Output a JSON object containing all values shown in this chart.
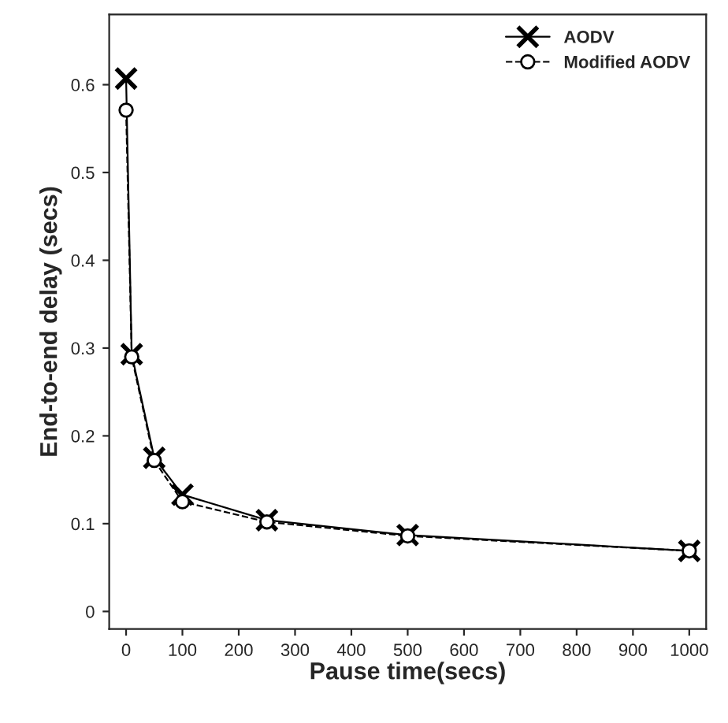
{
  "chart_data": {
    "type": "line",
    "xlabel": "Pause time(secs)",
    "ylabel": "End-to-end delay (secs)",
    "x": [
      0,
      10,
      50,
      100,
      250,
      500,
      1000
    ],
    "series": [
      {
        "name": "AODV",
        "color": "#000000",
        "marker": "cross",
        "line_style": "solid",
        "values": [
          0.607,
          0.293,
          0.175,
          0.133,
          0.104,
          0.087,
          0.069
        ]
      },
      {
        "name": "Modified AODV",
        "color": "#000000",
        "marker": "circle",
        "line_style": "dashed",
        "values": [
          0.571,
          0.29,
          0.172,
          0.125,
          0.102,
          0.086,
          0.069
        ]
      }
    ],
    "xlim": [
      -30,
      1030
    ],
    "xticks": [
      0,
      100,
      200,
      300,
      400,
      500,
      600,
      700,
      800,
      900,
      1000
    ],
    "ylim": [
      -0.02,
      0.68
    ],
    "yticks": [
      0,
      0.1,
      0.2,
      0.3,
      0.4,
      0.5,
      0.6
    ],
    "grid": false,
    "legend": "top right"
  }
}
